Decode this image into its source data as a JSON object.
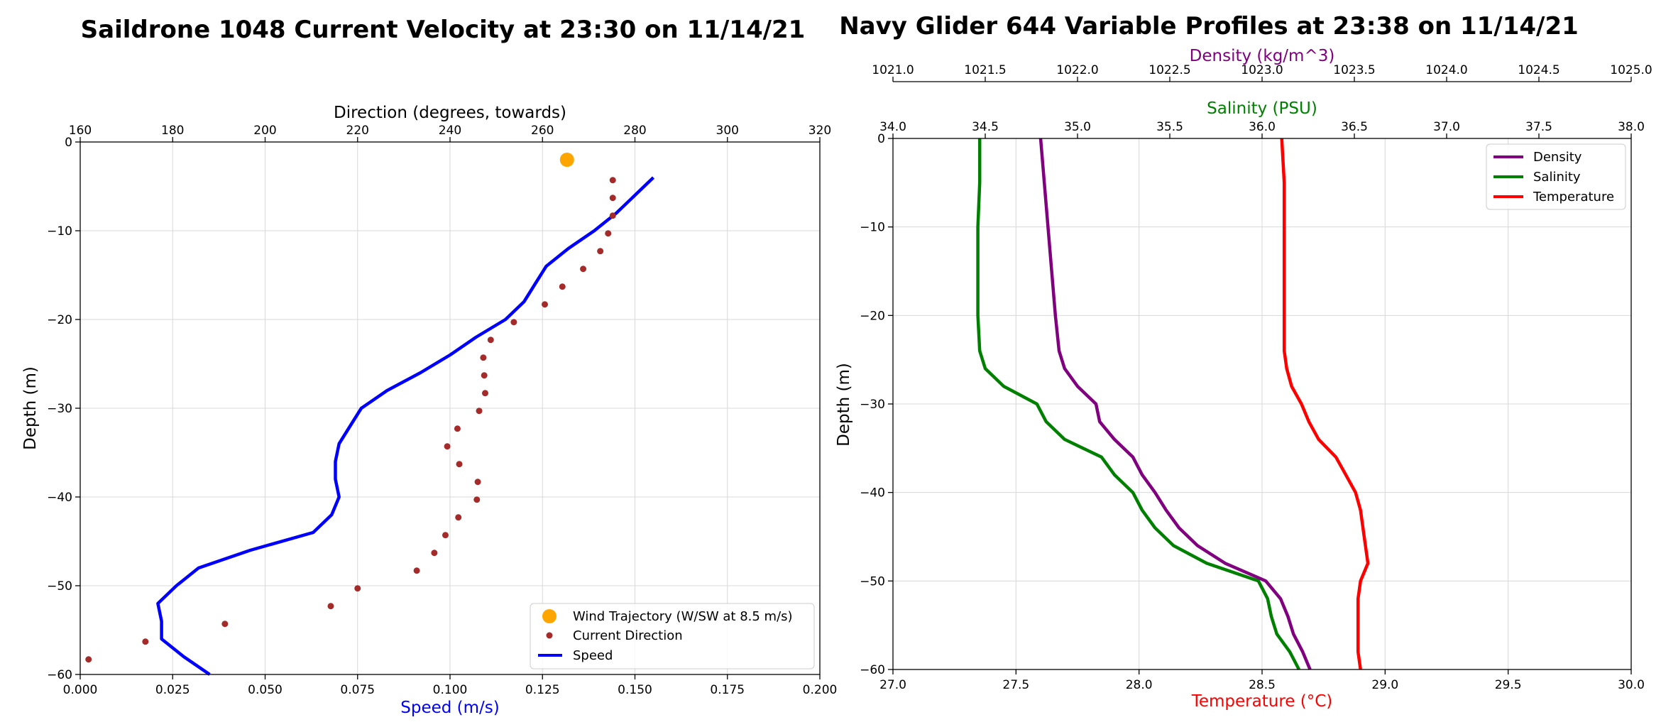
{
  "colors": {
    "speed": "#0000ff",
    "direction": "#a52a2a",
    "wind": "#ffa500",
    "density": "#800080",
    "salinity": "#008000",
    "temperature": "#ff0000"
  },
  "chart_data": [
    {
      "type": "line",
      "title": "Saildrone 1048 Current Velocity at 23:30 on 11/14/21",
      "xlabel": "Speed (m/s)",
      "x2label": "Direction (degrees, towards)",
      "ylabel": "Depth (m)",
      "xlim": [
        0.0,
        0.2
      ],
      "x2lim": [
        160,
        320
      ],
      "ylim": [
        -60,
        0
      ],
      "xticks": [
        "0.000",
        "0.025",
        "0.050",
        "0.075",
        "0.100",
        "0.125",
        "0.150",
        "0.175",
        "0.200"
      ],
      "x2ticks": [
        "160",
        "180",
        "200",
        "220",
        "240",
        "260",
        "280",
        "300",
        "320"
      ],
      "yticks": [
        "0",
        "−10",
        "−20",
        "−30",
        "−40",
        "−50",
        "−60"
      ],
      "grid": true,
      "legend_position": "lower-right",
      "legend": [
        "Wind Trajectory (W/SW at 8.5 m/s)",
        "Current Direction",
        "Speed"
      ],
      "series": [
        {
          "name": "Speed",
          "axis": "bottom",
          "kind": "line",
          "depth": [
            -4,
            -6,
            -8,
            -10,
            -12,
            -14,
            -16,
            -18,
            -20,
            -22,
            -24,
            -26,
            -28,
            -30,
            -32,
            -34,
            -36,
            -38,
            -40,
            -42,
            -44,
            -46,
            -48,
            -50,
            -52,
            -54,
            -56,
            -58,
            -60
          ],
          "values": [
            0.155,
            0.15,
            0.145,
            0.139,
            0.132,
            0.126,
            0.123,
            0.12,
            0.115,
            0.107,
            0.1,
            0.092,
            0.083,
            0.076,
            0.073,
            0.07,
            0.069,
            0.069,
            0.07,
            0.068,
            0.063,
            0.046,
            0.032,
            0.026,
            0.021,
            0.022,
            0.022,
            0.028,
            0.035
          ]
        },
        {
          "name": "Current Direction",
          "axis": "top",
          "kind": "scatter",
          "depth": [
            -4.3,
            -6.3,
            -8.3,
            -10.3,
            -12.3,
            -14.3,
            -16.3,
            -18.3,
            -20.3,
            -22.3,
            -24.3,
            -26.3,
            -28.3,
            -30.3,
            -32.3,
            -34.3,
            -36.3,
            -38.3,
            -40.3,
            -42.3,
            -44.3,
            -46.3,
            -48.3,
            -50.3,
            -52.3,
            -54.3,
            -56.3,
            -58.3
          ],
          "values": [
            275.2,
            275.2,
            275.2,
            274.2,
            272.5,
            268.8,
            264.3,
            260.5,
            253.8,
            248.8,
            247.2,
            247.4,
            247.6,
            246.3,
            241.6,
            239.4,
            242.0,
            246.0,
            245.8,
            241.8,
            239.0,
            236.6,
            232.8,
            220.0,
            214.2,
            191.3,
            174.1,
            161.8
          ]
        },
        {
          "name": "Wind Trajectory (W/SW at 8.5 m/s)",
          "axis": "top",
          "kind": "scatter",
          "depth": [
            -2.0
          ],
          "values": [
            265.3
          ]
        }
      ]
    },
    {
      "type": "line",
      "title": "Navy Glider 644 Variable Profiles at 23:38 on 11/14/21",
      "xlabel": "Temperature (°C)",
      "x2label": "Salinity (PSU)",
      "x3label": "Density (kg/m^3)",
      "ylabel": "Depth (m)",
      "xlim": [
        27.0,
        30.0
      ],
      "x2lim": [
        34.0,
        38.0
      ],
      "x3lim": [
        1021.0,
        1025.0
      ],
      "ylim": [
        -60,
        0
      ],
      "xticks": [
        "27.0",
        "27.5",
        "28.0",
        "28.5",
        "29.0",
        "29.5",
        "30.0"
      ],
      "x2ticks": [
        "34.0",
        "34.5",
        "35.0",
        "35.5",
        "36.0",
        "36.5",
        "37.0",
        "37.5",
        "38.0"
      ],
      "x3ticks": [
        "1021.0",
        "1021.5",
        "1022.0",
        "1022.5",
        "1023.0",
        "1023.5",
        "1024.0",
        "1024.5",
        "1025.0"
      ],
      "yticks": [
        "0",
        "−10",
        "−20",
        "−30",
        "−40",
        "−50",
        "−60"
      ],
      "grid": true,
      "legend_position": "upper-right",
      "legend": [
        "Density",
        "Salinity",
        "Temperature"
      ],
      "series": [
        {
          "name": "Density",
          "axis": "density",
          "depth": [
            0,
            -5,
            -10,
            -15,
            -20,
            -24,
            -26,
            -28,
            -30,
            -32,
            -34,
            -36,
            -38,
            -40,
            -42,
            -44,
            -46,
            -48,
            -50,
            -52,
            -54,
            -56,
            -58,
            -60
          ],
          "values": [
            1021.8,
            1021.82,
            1021.84,
            1021.86,
            1021.88,
            1021.9,
            1021.93,
            1022.0,
            1022.1,
            1022.12,
            1022.2,
            1022.3,
            1022.35,
            1022.42,
            1022.48,
            1022.55,
            1022.65,
            1022.8,
            1023.02,
            1023.1,
            1023.14,
            1023.17,
            1023.22,
            1023.26
          ]
        },
        {
          "name": "Salinity",
          "axis": "salinity",
          "depth": [
            0,
            -5,
            -10,
            -15,
            -20,
            -24,
            -26,
            -28,
            -30,
            -32,
            -34,
            -36,
            -38,
            -40,
            -42,
            -44,
            -46,
            -48,
            -50,
            -52,
            -54,
            -56,
            -58,
            -60
          ],
          "values": [
            34.47,
            34.47,
            34.46,
            34.46,
            34.46,
            34.47,
            34.5,
            34.6,
            34.78,
            34.83,
            34.93,
            35.13,
            35.2,
            35.3,
            35.35,
            35.42,
            35.52,
            35.7,
            35.98,
            36.03,
            36.05,
            36.08,
            36.15,
            36.2
          ]
        },
        {
          "name": "Temperature",
          "axis": "bottom",
          "depth": [
            0,
            -5,
            -10,
            -15,
            -20,
            -24,
            -26,
            -28,
            -30,
            -32,
            -34,
            -36,
            -38,
            -40,
            -42,
            -44,
            -46,
            -48,
            -50,
            -52,
            -54,
            -56,
            -58,
            -60
          ],
          "values": [
            28.58,
            28.59,
            28.59,
            28.59,
            28.59,
            28.59,
            28.6,
            28.62,
            28.66,
            28.69,
            28.73,
            28.8,
            28.84,
            28.88,
            28.9,
            28.91,
            28.92,
            28.93,
            28.9,
            28.89,
            28.89,
            28.89,
            28.89,
            28.9
          ]
        }
      ]
    }
  ]
}
